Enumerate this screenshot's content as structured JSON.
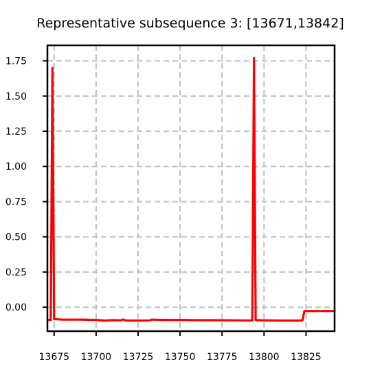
{
  "chart_data": {
    "type": "line",
    "title": "Representative subsequence 3: [13671,13842]",
    "xlabel": "",
    "ylabel": "",
    "xlim": [
      13671,
      13842
    ],
    "ylim": [
      -0.17,
      1.86
    ],
    "grid": true,
    "x_ticks": [
      13675,
      13700,
      13725,
      13750,
      13775,
      13800,
      13825
    ],
    "x_tick_labels": [
      "13675",
      "13700",
      "13725",
      "13750",
      "13775",
      "13800",
      "13825"
    ],
    "y_ticks": [
      0.0,
      0.25,
      0.5,
      0.75,
      1.0,
      1.25,
      1.5,
      1.75
    ],
    "y_tick_labels": [
      "0.00",
      "0.25",
      "0.50",
      "0.75",
      "1.00",
      "1.25",
      "1.50",
      "1.75"
    ],
    "series": [
      {
        "color": "#ff0000",
        "x": [
          13671,
          13673,
          13674,
          13675,
          13676,
          13680,
          13690,
          13700,
          13705,
          13710,
          13715,
          13716,
          13718,
          13725,
          13732,
          13733,
          13740,
          13750,
          13760,
          13770,
          13780,
          13790,
          13793,
          13794,
          13795,
          13796,
          13800,
          13810,
          13820,
          13822,
          13823,
          13824,
          13830,
          13842
        ],
        "y": [
          -0.09,
          -0.09,
          1.7,
          -0.085,
          -0.085,
          -0.088,
          -0.088,
          -0.09,
          -0.095,
          -0.092,
          -0.093,
          -0.087,
          -0.095,
          -0.095,
          -0.094,
          -0.088,
          -0.09,
          -0.09,
          -0.092,
          -0.092,
          -0.093,
          -0.094,
          -0.094,
          1.77,
          -0.09,
          -0.092,
          -0.093,
          -0.095,
          -0.095,
          -0.095,
          -0.09,
          -0.027,
          -0.027,
          -0.027
        ]
      }
    ]
  },
  "colors": {
    "line": "#ff0000",
    "grid": "#c4c4c4",
    "axis": "#000000"
  }
}
